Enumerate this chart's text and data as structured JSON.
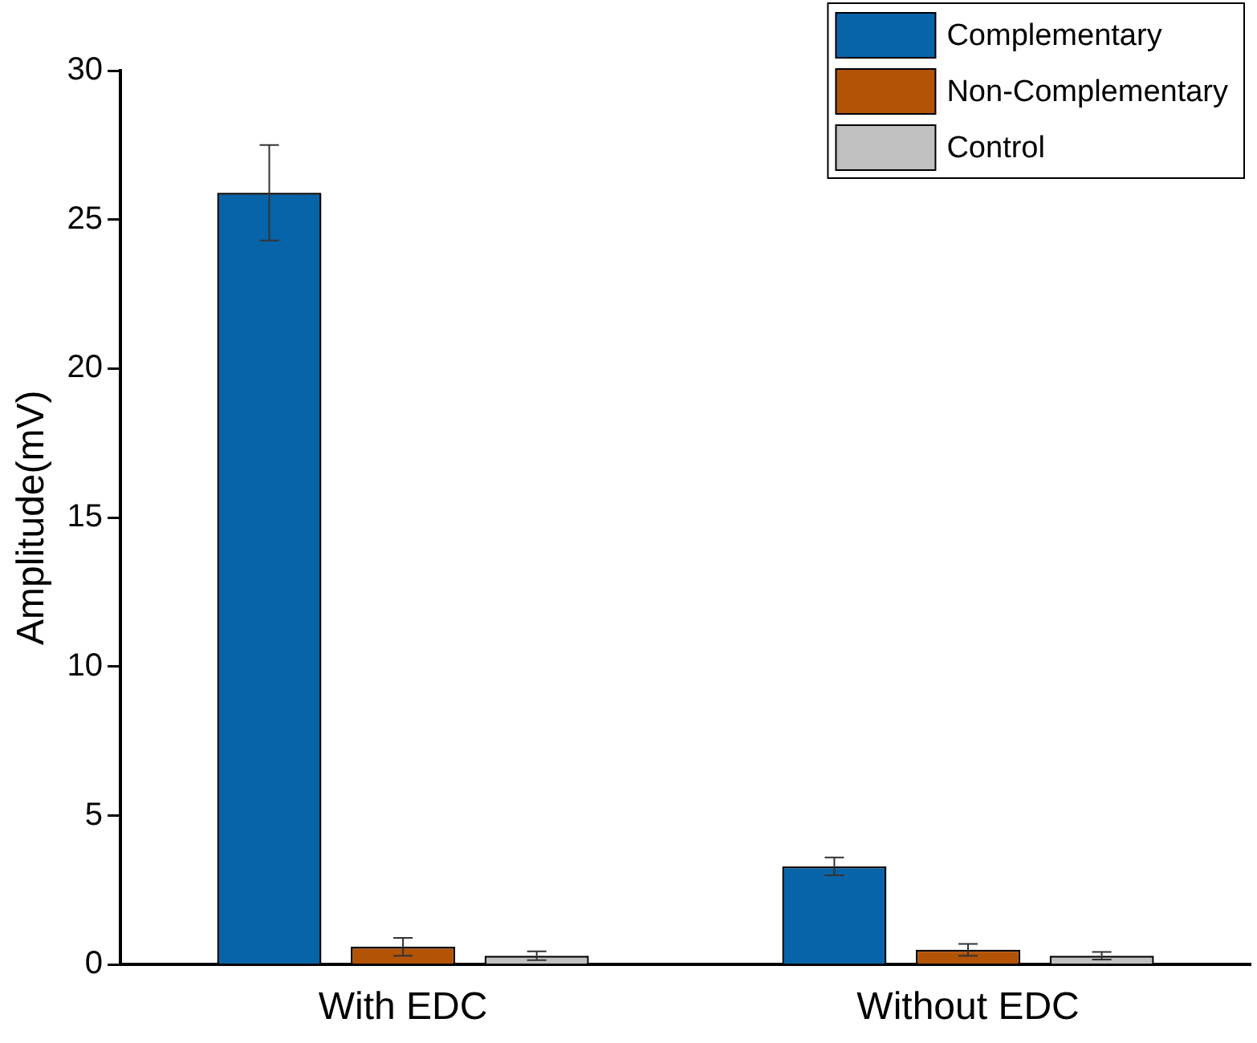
{
  "chart_data": {
    "type": "bar",
    "ylabel": "Amplitude(mV)",
    "categories": [
      "With EDC",
      "Without EDC"
    ],
    "series": [
      {
        "name": "Complementary",
        "color": "#0864a8",
        "values": [
          25.9,
          3.3
        ],
        "errors": [
          1.6,
          0.3
        ]
      },
      {
        "name": "Non-Complementary",
        "color": "#b35306",
        "values": [
          0.6,
          0.5
        ],
        "errors": [
          0.3,
          0.2
        ]
      },
      {
        "name": "Control",
        "color": "#c0c0c0",
        "values": [
          0.3,
          0.3
        ],
        "errors": [
          0.15,
          0.13
        ]
      }
    ],
    "ylim": [
      0,
      30
    ],
    "yticks": [
      0,
      5,
      10,
      15,
      20,
      25,
      30
    ],
    "grid": false,
    "legend": "top right"
  }
}
